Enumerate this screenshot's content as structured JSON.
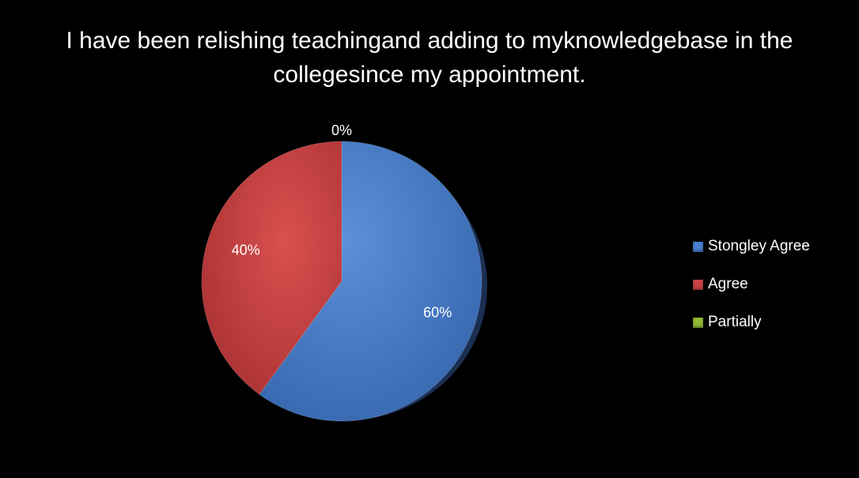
{
  "chart_data": {
    "type": "pie",
    "title": "I have been relishing teachingand adding to myknowledgebase in the collegesince my appointment.",
    "slices": [
      {
        "name": "Stongley Agree",
        "value": 60,
        "label": "60%",
        "color": "#3f74bf"
      },
      {
        "name": "Agree",
        "value": 40,
        "label": "40%",
        "color": "#c0393b"
      },
      {
        "name": "Partially",
        "value": 0,
        "label": "0%",
        "color": "#8fb935"
      }
    ],
    "legend_position": "right"
  }
}
